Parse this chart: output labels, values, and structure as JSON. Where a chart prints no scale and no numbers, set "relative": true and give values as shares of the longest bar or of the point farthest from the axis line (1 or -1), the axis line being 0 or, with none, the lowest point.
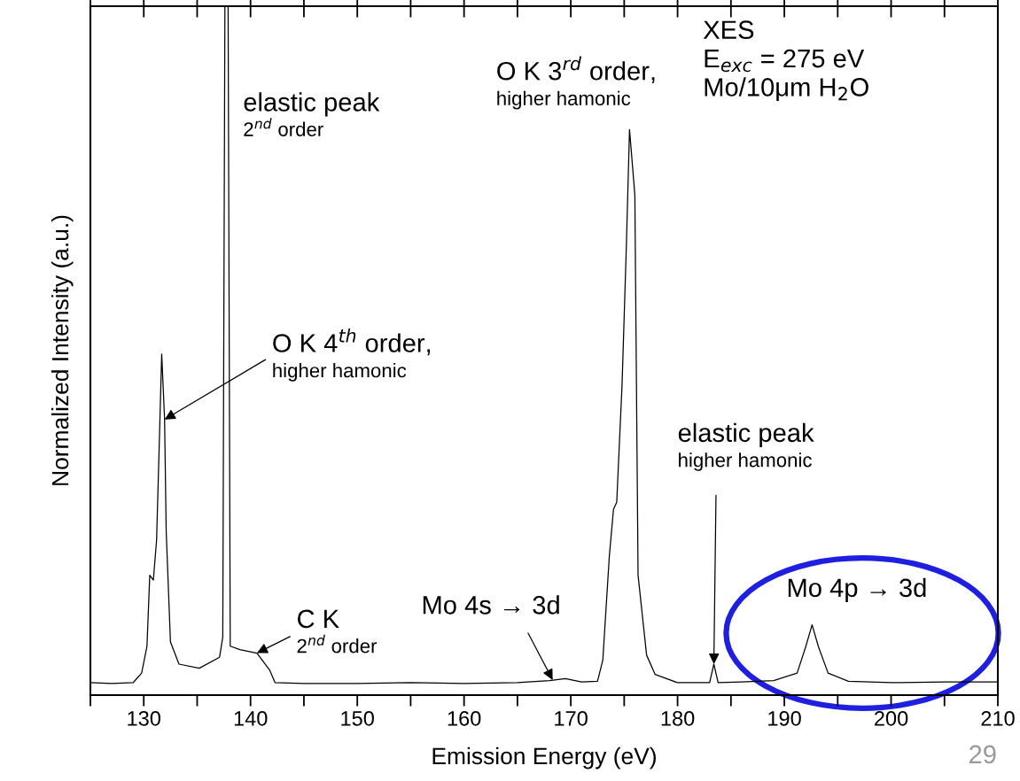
{
  "chart_data": {
    "type": "line",
    "relative": true,
    "xlabel": "Emission Energy (eV)",
    "ylabel": "Normalized Intensity (a.u.)",
    "xlim": [
      125,
      210
    ],
    "xticks": [
      {
        "value": 125,
        "label": null
      },
      130,
      {
        "value": 135,
        "label": null
      },
      140,
      {
        "value": 145,
        "label": null
      },
      150,
      {
        "value": 155,
        "label": null
      },
      160,
      {
        "value": 165,
        "label": null
      },
      170,
      {
        "value": 175,
        "label": null
      },
      180,
      {
        "value": 185,
        "label": null
      },
      190,
      {
        "value": 195,
        "label": null
      },
      200,
      {
        "value": 205,
        "label": null
      },
      210
    ],
    "grid": false,
    "legend": false,
    "marker": "none",
    "line_style": "solid",
    "series": [
      {
        "color": "#000000",
        "x": [
          125,
          127,
          129,
          129.8,
          130.3,
          130.56,
          130.9,
          131.2,
          131.5,
          131.68,
          131.95,
          132.1,
          132.5,
          133.3,
          135.2,
          137.1,
          137.4,
          137.6,
          137.9,
          138.1,
          139,
          140.6,
          141.8,
          142.3,
          145,
          150,
          155,
          160,
          165,
          168,
          169.5,
          171,
          172.5,
          173,
          173.6,
          174.0,
          174.3,
          174.8,
          175.2,
          175.5,
          176.0,
          176.3,
          177.1,
          177.9,
          180,
          183.0,
          183.4,
          183.8,
          186,
          189,
          191.2,
          192.0,
          192.6,
          193.2,
          194.1,
          196,
          200,
          205,
          210
        ],
        "values": [
          0.018,
          0.017,
          0.018,
          0.032,
          0.071,
          0.174,
          0.167,
          0.225,
          0.392,
          0.495,
          0.4,
          0.238,
          0.077,
          0.045,
          0.039,
          0.055,
          0.084,
          1.0,
          1.0,
          0.071,
          0.066,
          0.061,
          0.036,
          0.018,
          0.017,
          0.017,
          0.018,
          0.017,
          0.018,
          0.021,
          0.024,
          0.019,
          0.02,
          0.051,
          0.2,
          0.27,
          0.28,
          0.45,
          0.65,
          0.821,
          0.726,
          0.174,
          0.058,
          0.03,
          0.018,
          0.018,
          0.045,
          0.018,
          0.019,
          0.021,
          0.032,
          0.07,
          0.102,
          0.07,
          0.032,
          0.02,
          0.018,
          0.019,
          0.019
        ]
      }
    ],
    "annotations": [
      "elastic peak\n2$^{nd}$ order",
      {
        "text": "O K 4$^{th}$ order,\nhigher hamonic",
        "x": 131.95,
        "y": 0.4
      },
      {
        "text": "C K\n2$^{nd}$ order",
        "x": 140.6,
        "y": 0.061
      },
      {
        "text": "Mo 4s → 3d",
        "x": 168.3,
        "y": 0.022
      },
      "O K 3$^{rd}$ order,\nhigher hamonic",
      {
        "text": "elastic peak\nhigher hamonic",
        "x": 183.4,
        "y": 0.045
      },
      "Mo 4p → 3d",
      "XES\nE$_{exc}$ = 275 eV\nMo/10μm H$_{2}$O",
      "29"
    ]
  }
}
